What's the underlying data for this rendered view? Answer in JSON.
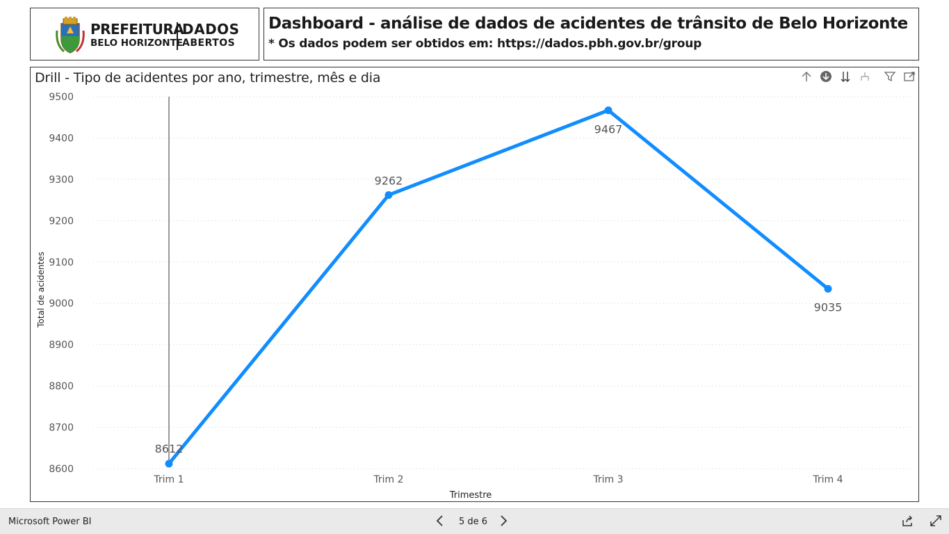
{
  "logo": {
    "line1": "PREFEITURA",
    "line2": "BELO HORIZONTE",
    "brand1": "DADOS",
    "brand2": "ABERTOS"
  },
  "header": {
    "title": "Dashboard - análise de dados de acidentes de trânsito de Belo Horizonte",
    "subtitle": "* Os dados podem ser obtidos em: https://dados.pbh.gov.br/group"
  },
  "visual": {
    "title": "Drill - Tipo de acidentes por ano, trimestre, mês e dia",
    "icons": [
      "arrow-up-icon",
      "drill-down-circle-icon",
      "expand-down-icon",
      "hierarchy-icon",
      "filter-icon",
      "focus-mode-icon"
    ]
  },
  "chart_data": {
    "type": "line",
    "title": "Drill - Tipo de acidentes por ano, trimestre, mês e dia",
    "xlabel": "Trimestre",
    "ylabel": "Total de acidentes",
    "categories": [
      "Trim 1",
      "Trim 2",
      "Trim 3",
      "Trim 4"
    ],
    "values": [
      8612,
      9262,
      9467,
      9035
    ],
    "data_labels": [
      "8612",
      "9262",
      "9467",
      "9035"
    ],
    "ylim": [
      8600,
      9500
    ],
    "yticks": [
      "8600",
      "8700",
      "8800",
      "8900",
      "9000",
      "9100",
      "9200",
      "9300",
      "9400",
      "9500"
    ],
    "grid": true,
    "line_color": "#118DFF"
  },
  "footer": {
    "brand": "Microsoft Power BI",
    "page": "5 de 6"
  }
}
